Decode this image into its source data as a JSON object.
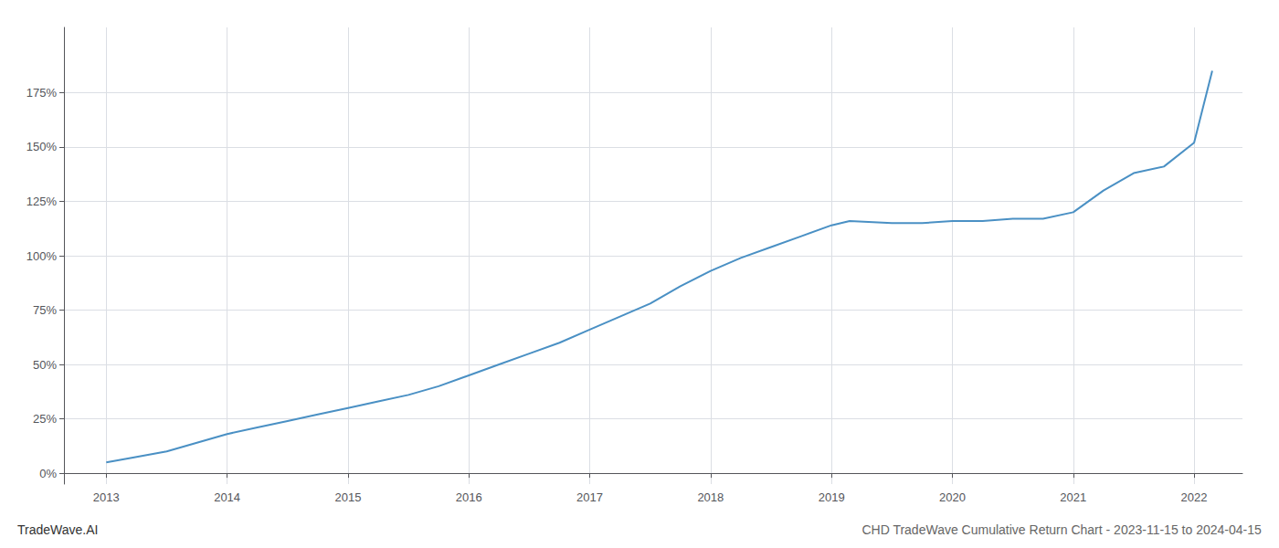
{
  "chart_data": {
    "type": "line",
    "title": "CHD TradeWave Cumulative Return Chart - 2023-11-15 to 2024-04-15",
    "annotations": [
      "TradeWave.AI"
    ],
    "x": [
      2013.0,
      2013.2,
      2013.5,
      2013.75,
      2014.0,
      2014.25,
      2014.5,
      2014.75,
      2015.0,
      2015.25,
      2015.5,
      2015.75,
      2016.0,
      2016.25,
      2016.5,
      2016.75,
      2017.0,
      2017.25,
      2017.5,
      2017.75,
      2018.0,
      2018.25,
      2018.5,
      2018.75,
      2019.0,
      2019.15,
      2019.5,
      2019.75,
      2020.0,
      2020.25,
      2020.5,
      2020.75,
      2021.0,
      2021.25,
      2021.5,
      2021.75,
      2022.0,
      2022.15
    ],
    "values": [
      5,
      7,
      10,
      14,
      18,
      21,
      24,
      27,
      30,
      33,
      36,
      40,
      45,
      50,
      55,
      60,
      66,
      72,
      78,
      86,
      93,
      99,
      104,
      109,
      114,
      116,
      115,
      115,
      116,
      116,
      117,
      117,
      120,
      130,
      138,
      141,
      152,
      185
    ],
    "color": "#4a90c4",
    "xlim": [
      2012.65,
      2022.4
    ],
    "xticks": [
      2013,
      2014,
      2015,
      2016,
      2017,
      2018,
      2019,
      2020,
      2021,
      2022
    ],
    "ylim": [
      -5,
      205
    ],
    "yticks": [
      {
        "value": 0,
        "label": "0%"
      },
      {
        "value": 25,
        "label": "25%"
      },
      {
        "value": 50,
        "label": "50%"
      },
      {
        "value": 75,
        "label": "75%"
      },
      {
        "value": 100,
        "label": "100%"
      },
      {
        "value": 125,
        "label": "125%"
      },
      {
        "value": 150,
        "label": "150%"
      },
      {
        "value": 175,
        "label": "175%"
      }
    ],
    "grid": true
  }
}
